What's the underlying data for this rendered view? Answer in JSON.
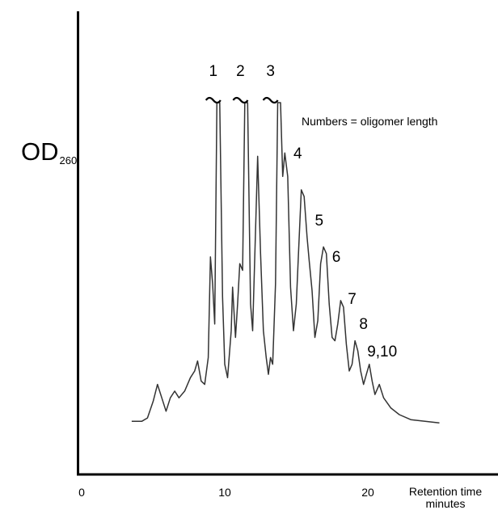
{
  "chart_data": {
    "type": "line",
    "title": "",
    "ylabel": {
      "main": "OD",
      "subscript": "260"
    },
    "xlabel": {
      "line1": "Retention time",
      "line2": "minutes"
    },
    "annotation": "Numbers = oligomer length",
    "xlim": [
      0,
      25
    ],
    "ylim": [
      0,
      1
    ],
    "x_ticks": [
      {
        "value": 0,
        "label": "0"
      },
      {
        "value": 10,
        "label": "10"
      },
      {
        "value": 20,
        "label": "20"
      }
    ],
    "grid": false,
    "legend": "none",
    "line_color": "#333333",
    "peak_labels": [
      {
        "label": "1",
        "x": 9.2,
        "y": 1.06,
        "offscale": true
      },
      {
        "label": "2",
        "x": 11.1,
        "y": 1.06,
        "offscale": true
      },
      {
        "label": "3",
        "x": 13.2,
        "y": 1.06,
        "offscale": true
      },
      {
        "label": "4",
        "x": 15.1,
        "y": 0.815
      },
      {
        "label": "5",
        "x": 16.6,
        "y": 0.615
      },
      {
        "label": "6",
        "x": 17.8,
        "y": 0.505
      },
      {
        "label": "7",
        "x": 18.9,
        "y": 0.38
      },
      {
        "label": "8",
        "x": 19.7,
        "y": 0.305
      },
      {
        "label": "9,10",
        "x": 21.0,
        "y": 0.225
      }
    ],
    "series": [
      {
        "points": [
          [
            3.5,
            0.05
          ],
          [
            4.2,
            0.05
          ],
          [
            4.6,
            0.06
          ],
          [
            5.0,
            0.11
          ],
          [
            5.3,
            0.16
          ],
          [
            5.6,
            0.12
          ],
          [
            5.9,
            0.08
          ],
          [
            6.2,
            0.12
          ],
          [
            6.5,
            0.14
          ],
          [
            6.8,
            0.12
          ],
          [
            7.2,
            0.14
          ],
          [
            7.6,
            0.18
          ],
          [
            7.9,
            0.2
          ],
          [
            8.1,
            0.23
          ],
          [
            8.35,
            0.17
          ],
          [
            8.6,
            0.16
          ],
          [
            8.85,
            0.24
          ],
          [
            9.0,
            0.54
          ],
          [
            9.15,
            0.46
          ],
          [
            9.3,
            0.34
          ],
          [
            9.45,
            1.0
          ],
          [
            9.65,
            1.0
          ],
          [
            9.85,
            0.42
          ],
          [
            10.0,
            0.22
          ],
          [
            10.2,
            0.18
          ],
          [
            10.45,
            0.32
          ],
          [
            10.55,
            0.45
          ],
          [
            10.75,
            0.3
          ],
          [
            10.9,
            0.4
          ],
          [
            11.05,
            0.52
          ],
          [
            11.25,
            0.5
          ],
          [
            11.4,
            1.0
          ],
          [
            11.6,
            1.0
          ],
          [
            11.8,
            0.4
          ],
          [
            11.95,
            0.32
          ],
          [
            12.15,
            0.62
          ],
          [
            12.3,
            0.84
          ],
          [
            12.5,
            0.55
          ],
          [
            12.7,
            0.32
          ],
          [
            12.9,
            0.24
          ],
          [
            13.05,
            0.19
          ],
          [
            13.2,
            0.24
          ],
          [
            13.35,
            0.22
          ],
          [
            13.55,
            0.46
          ],
          [
            13.7,
            1.0
          ],
          [
            13.9,
            1.0
          ],
          [
            14.05,
            0.78
          ],
          [
            14.2,
            0.85
          ],
          [
            14.4,
            0.78
          ],
          [
            14.6,
            0.45
          ],
          [
            14.8,
            0.32
          ],
          [
            15.0,
            0.4
          ],
          [
            15.15,
            0.55
          ],
          [
            15.35,
            0.74
          ],
          [
            15.55,
            0.72
          ],
          [
            15.75,
            0.6
          ],
          [
            15.9,
            0.53
          ],
          [
            16.1,
            0.44
          ],
          [
            16.3,
            0.3
          ],
          [
            16.5,
            0.35
          ],
          [
            16.7,
            0.52
          ],
          [
            16.9,
            0.57
          ],
          [
            17.1,
            0.55
          ],
          [
            17.3,
            0.4
          ],
          [
            17.5,
            0.3
          ],
          [
            17.7,
            0.29
          ],
          [
            17.9,
            0.34
          ],
          [
            18.1,
            0.41
          ],
          [
            18.3,
            0.39
          ],
          [
            18.5,
            0.28
          ],
          [
            18.7,
            0.2
          ],
          [
            18.9,
            0.22
          ],
          [
            19.1,
            0.29
          ],
          [
            19.3,
            0.26
          ],
          [
            19.5,
            0.2
          ],
          [
            19.7,
            0.16
          ],
          [
            19.9,
            0.19
          ],
          [
            20.1,
            0.22
          ],
          [
            20.3,
            0.17
          ],
          [
            20.5,
            0.13
          ],
          [
            20.8,
            0.16
          ],
          [
            21.1,
            0.12
          ],
          [
            21.6,
            0.09
          ],
          [
            22.2,
            0.07
          ],
          [
            23.0,
            0.055
          ],
          [
            24.0,
            0.05
          ],
          [
            25.0,
            0.045
          ]
        ]
      }
    ]
  }
}
